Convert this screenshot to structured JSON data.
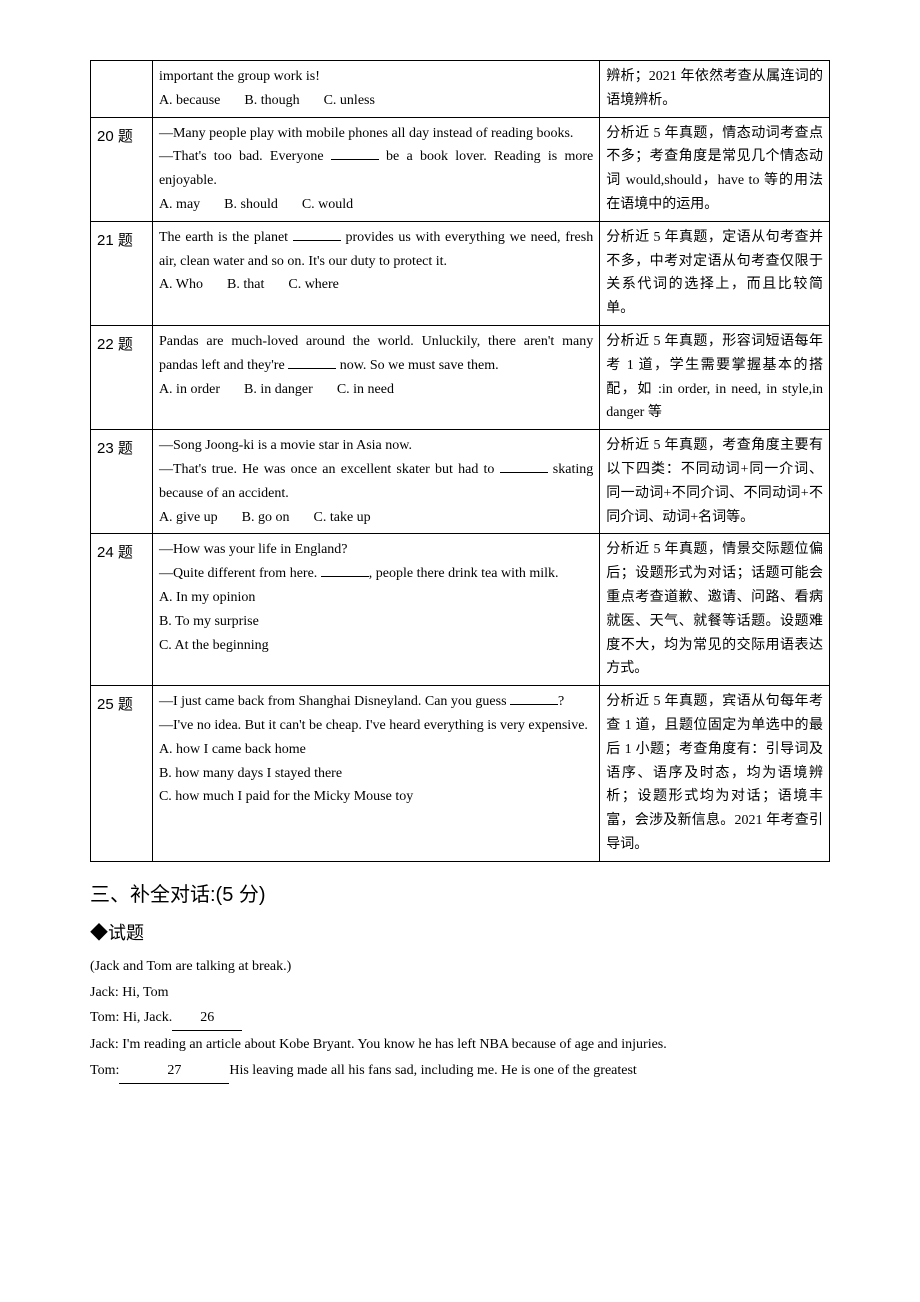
{
  "rows": [
    {
      "num": "",
      "question": {
        "lines": [
          "important the group work is!"
        ],
        "options": [
          "A. because",
          "B. though",
          "C. unless"
        ]
      },
      "analysis": [
        "辨析；2021 年依然考查从属连词的语境辨析。"
      ]
    },
    {
      "num": "20 题",
      "question": {
        "lines": [
          "—Many people play with mobile phones all day instead of reading books.",
          "—That's too bad. Everyone {{blank}} be a book lover. Reading is more enjoyable."
        ],
        "options": [
          "A. may",
          "B. should",
          "C. would"
        ]
      },
      "analysis": [
        "分析近 5 年真题，情态动词考查点不多；考查角度是常见几个情态动词 would,should，have to 等的用法在语境中的运用。"
      ]
    },
    {
      "num": "21 题",
      "question": {
        "lines": [
          "The earth is the planet {{blank}} provides us with everything we need, fresh air, clean water and so on. It's our duty to protect it."
        ],
        "options": [
          "A. Who",
          "B. that",
          "C. where"
        ]
      },
      "analysis": [
        "分析近 5 年真题，定语从句考查并不多，中考对定语从句考查仅限于关系代词的选择上，而且比较简单。"
      ]
    },
    {
      "num": "22 题",
      "question": {
        "lines": [
          "Pandas are much-loved around the world. Unluckily, there aren't many pandas left and they're {{blank}} now. So we must save them."
        ],
        "options": [
          "A. in order",
          "B. in danger",
          "C. in need"
        ]
      },
      "analysis": [
        "分析近 5 年真题，形容词短语每年考 1 道，学生需要掌握基本的搭配，如 :in order, in need, in style,in danger 等"
      ]
    },
    {
      "num": "23 题",
      "question": {
        "lines": [
          "—Song Joong-ki is a movie star in Asia now.",
          "—That's true. He was once an excellent skater but had to {{blank}} skating because of an accident."
        ],
        "options": [
          "A. give up",
          "B. go on",
          "C. take up"
        ]
      },
      "analysis": [
        "分析近 5 年真题，考查角度主要有以下四类：不同动词+同一介词、同一动词+不同介词、不同动词+不同介词、动词+名词等。"
      ]
    },
    {
      "num": "24 题",
      "question": {
        "lines": [
          "—How was your life in England?",
          "—Quite different from here. {{blank}}, people there drink tea with milk."
        ],
        "options_stack": [
          "A. In my opinion",
          "B. To my surprise",
          "C. At the beginning"
        ]
      },
      "analysis": [
        "分析近 5 年真题，情景交际题位偏后；设题形式为对话；话题可能会重点考查道歉、邀请、问路、看病就医、天气、就餐等话题。设题难度不大，均为常见的交际用语表达方式。"
      ]
    },
    {
      "num": "25 题",
      "question": {
        "lines": [
          "—I just came back from Shanghai Disneyland. Can you guess {{blank}}?",
          "—I've no idea. But it can't be cheap. I've heard everything is very expensive."
        ],
        "options_stack": [
          "A. how I came back home",
          "B. how many days I stayed there",
          "C. how much I paid for the Micky Mouse toy"
        ]
      },
      "analysis": [
        "分析近 5 年真题，宾语从句每年考查 1 道，且题位固定为单选中的最后 1 小题；考查角度有：引导词及语序、语序及时态，均为语境辨析；设题形式均为对话；语境丰富，会涉及新信息。2021 年考查引导词。"
      ]
    }
  ],
  "section3_title": "三、补全对话:(5 分)",
  "sub_title": "◆试题",
  "dialogue": {
    "intro": "(Jack and Tom are talking at break.)",
    "lines": [
      {
        "text": "Jack: Hi, Tom"
      },
      {
        "text": "Tom: Hi, Jack.",
        "blank_num": "26",
        "blank_class": "ublank"
      },
      {
        "text": "Jack: I'm reading an article about Kobe Bryant. You know he has left NBA because of age and injuries."
      },
      {
        "prefix": "Tom:",
        "blank_num": "27",
        "blank_class": "ublank w2",
        "suffix": "His leaving made all his fans sad, including me. He is one of the greatest"
      }
    ]
  }
}
